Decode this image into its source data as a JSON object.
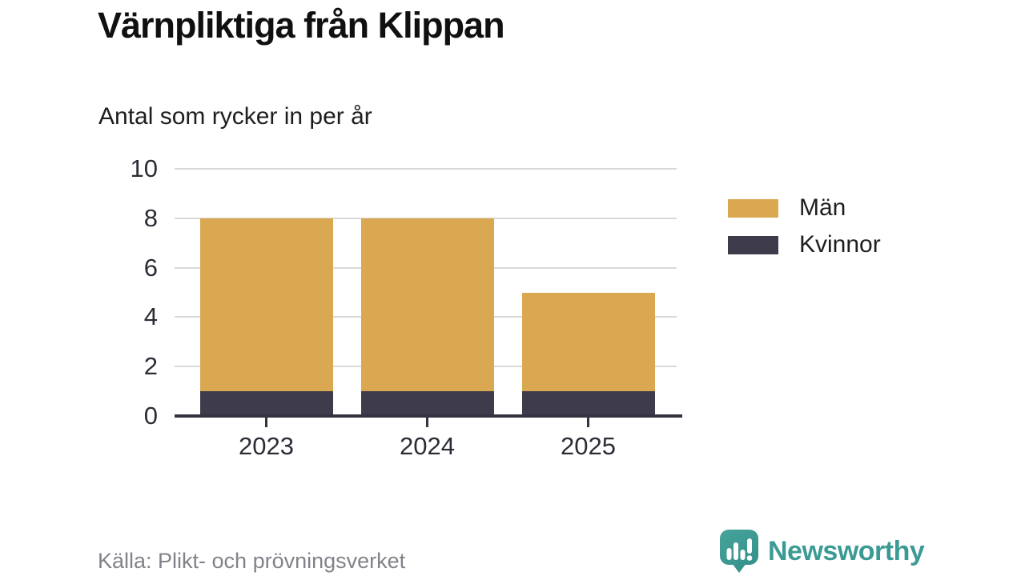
{
  "chart_data": {
    "type": "bar",
    "stacked": true,
    "title": "Värnpliktiga från Klippan",
    "subtitle": "Antal som rycker in per år",
    "categories": [
      "2023",
      "2024",
      "2025"
    ],
    "series": [
      {
        "name": "Män",
        "color": "#d9a851",
        "values": [
          7,
          7,
          4
        ]
      },
      {
        "name": "Kvinnor",
        "color": "#3e3c4b",
        "values": [
          1,
          1,
          1
        ]
      }
    ],
    "stack_order": "last-series-at-bottom",
    "totals": [
      8,
      8,
      5
    ],
    "xlabel": "",
    "ylabel": "",
    "ylim": [
      0,
      10
    ],
    "yticks": [
      0,
      2,
      4,
      6,
      8,
      10
    ],
    "grid": true,
    "legend_position": "right"
  },
  "footer": {
    "source": "Källa: Plikt- och prövningsverket",
    "brand": "Newsworthy"
  },
  "colors": {
    "grid": "#d9d9d9",
    "axis": "#35333f",
    "title": "#101010",
    "axis_labels": "#2d2b35",
    "source_text": "#82828a",
    "brand_teal": "#3b9b94"
  }
}
